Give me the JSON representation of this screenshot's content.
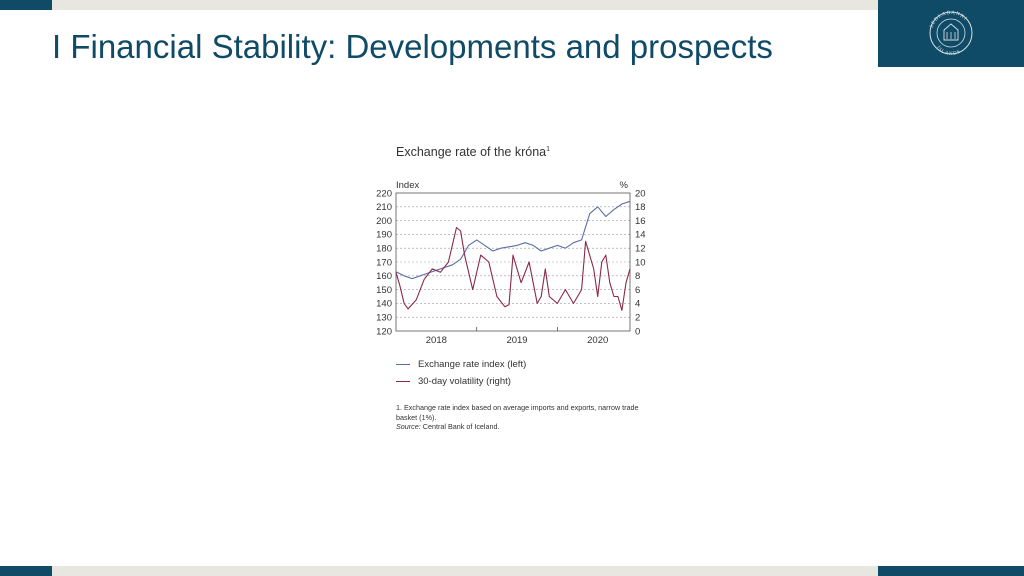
{
  "slide": {
    "title": "I Financial Stability: Developments and prospects",
    "logo_alt": "SEÐLABANKI ÍSLANDS"
  },
  "colors": {
    "brand": "#0f4a66",
    "bar_gray": "#e8e6e1",
    "index_line": "#5a6fa8",
    "volatility_line": "#8a2a4a"
  },
  "chart_data": {
    "type": "line",
    "title": "Exchange rate of the króna",
    "title_note": "1",
    "left_axis": {
      "label": "Index",
      "range": [
        120,
        220
      ],
      "ticks": [
        120,
        130,
        140,
        150,
        160,
        170,
        180,
        190,
        200,
        210,
        220
      ]
    },
    "right_axis": {
      "label": "%",
      "range": [
        0,
        20
      ],
      "ticks": [
        0,
        2,
        4,
        6,
        8,
        10,
        12,
        14,
        16,
        18,
        20
      ]
    },
    "x_axis": {
      "range": [
        2017.5,
        2020.4
      ],
      "tick_labels": [
        "2018",
        "2019",
        "2020"
      ],
      "tick_label_positions": [
        2018.0,
        2019.0,
        2020.0
      ],
      "year_boundaries": [
        2018.5,
        2019.5
      ]
    },
    "grid": "horizontal-dashed",
    "series": [
      {
        "name": "Exchange rate index (left)",
        "axis": "left",
        "color": "#5a6fa8",
        "x": [
          2017.5,
          2017.6,
          2017.7,
          2017.8,
          2017.9,
          2018.0,
          2018.1,
          2018.2,
          2018.3,
          2018.4,
          2018.5,
          2018.6,
          2018.7,
          2018.8,
          2018.9,
          2019.0,
          2019.1,
          2019.2,
          2019.3,
          2019.4,
          2019.5,
          2019.6,
          2019.7,
          2019.8,
          2019.9,
          2020.0,
          2020.1,
          2020.2,
          2020.3,
          2020.4
        ],
        "values": [
          163,
          160,
          158,
          160,
          162,
          164,
          166,
          168,
          172,
          182,
          186,
          182,
          178,
          180,
          181,
          182,
          184,
          182,
          178,
          180,
          182,
          180,
          184,
          186,
          205,
          210,
          203,
          208,
          212,
          214
        ]
      },
      {
        "name": "30-day volatility (right)",
        "axis": "right",
        "color": "#8a2a4a",
        "x": [
          2017.5,
          2017.55,
          2017.6,
          2017.65,
          2017.75,
          2017.85,
          2017.95,
          2018.05,
          2018.15,
          2018.25,
          2018.3,
          2018.35,
          2018.45,
          2018.55,
          2018.65,
          2018.75,
          2018.85,
          2018.9,
          2018.95,
          2019.05,
          2019.15,
          2019.25,
          2019.3,
          2019.35,
          2019.4,
          2019.5,
          2019.6,
          2019.7,
          2019.8,
          2019.85,
          2019.95,
          2020.0,
          2020.05,
          2020.1,
          2020.15,
          2020.2,
          2020.25,
          2020.3,
          2020.35,
          2020.4
        ],
        "values": [
          8.5,
          6.5,
          4,
          3.2,
          4.5,
          7.5,
          9,
          8.5,
          10,
          15,
          14.5,
          11,
          6,
          11,
          10,
          5,
          3.5,
          3.8,
          11,
          7,
          10,
          4,
          5,
          9,
          5,
          4,
          6,
          4,
          6,
          13,
          9,
          5,
          10,
          11,
          7,
          5,
          5,
          3,
          7,
          9
        ]
      }
    ],
    "legend": [
      "Exchange rate index (left)",
      "30-day volatility (right)"
    ],
    "legend_placement": "bottom",
    "footnote": "1. Exchange rate index based on average imports and exports, narrow trade basket (1%).",
    "source_label": "Source:",
    "source_text": "Central Bank of Iceland."
  }
}
